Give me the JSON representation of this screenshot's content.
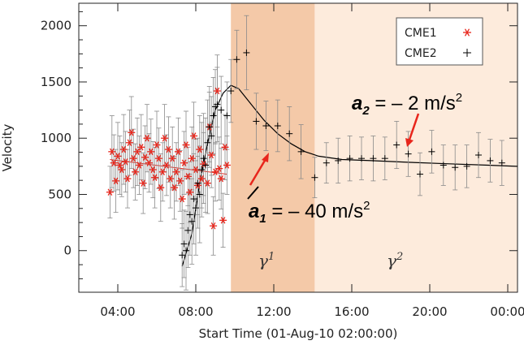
{
  "chart_data": {
    "type": "scatter",
    "title": "",
    "xlabel": "Start Time (01-Aug-10 02:00:00)",
    "ylabel": "Velocity",
    "xlim_hours": [
      2.0,
      24.5
    ],
    "ylim": [
      -370,
      2200
    ],
    "xticks": [
      {
        "hour": 4,
        "label": "04:00"
      },
      {
        "hour": 8,
        "label": "08:00"
      },
      {
        "hour": 12,
        "label": "12:00"
      },
      {
        "hour": 16,
        "label": "16:00"
      },
      {
        "hour": 20,
        "label": "20:00"
      },
      {
        "hour": 24,
        "label": "00:00"
      }
    ],
    "yticks": [
      0,
      500,
      1000,
      1500,
      2000
    ],
    "regions": [
      {
        "name": "γ1",
        "label": "γ",
        "label_index": "1",
        "start_hour": 9.8,
        "end_hour": 14.1,
        "color": "#f4c9a8"
      },
      {
        "name": "γ2",
        "label": "γ",
        "label_index": "2",
        "start_hour": 14.1,
        "end_hour": 24.5,
        "color": "#fdebdc"
      }
    ],
    "legend": {
      "position": "top-right",
      "entries": [
        {
          "label": "CME1",
          "marker": "asterisk",
          "color": "#e8261c"
        },
        {
          "label": "CME2",
          "marker": "plus",
          "color": "#000000"
        }
      ]
    },
    "annotations": [
      {
        "symbol": "a",
        "subscript": "1",
        "text": " = – 40 m/s",
        "superscript": "2"
      },
      {
        "symbol": "a",
        "subscript": "2",
        "text": " = – 2 m/s",
        "superscript": "2"
      }
    ],
    "series": [
      {
        "name": "CME1",
        "marker": "asterisk",
        "color": "#e8261c",
        "points": [
          [
            3.6,
            520,
            230
          ],
          [
            3.7,
            880,
            320
          ],
          [
            3.8,
            780,
            250
          ],
          [
            3.9,
            620,
            280
          ],
          [
            4.0,
            840,
            300
          ],
          [
            4.1,
            760,
            260
          ],
          [
            4.2,
            720,
            240
          ],
          [
            4.3,
            900,
            310
          ],
          [
            4.4,
            790,
            270
          ],
          [
            4.5,
            640,
            260
          ],
          [
            4.6,
            960,
            290
          ],
          [
            4.7,
            1050,
            320
          ],
          [
            4.8,
            820,
            260
          ],
          [
            4.9,
            700,
            250
          ],
          [
            5.0,
            880,
            300
          ],
          [
            5.1,
            760,
            260
          ],
          [
            5.2,
            920,
            290
          ],
          [
            5.3,
            600,
            270
          ],
          [
            5.4,
            830,
            280
          ],
          [
            5.5,
            1000,
            300
          ],
          [
            5.6,
            780,
            260
          ],
          [
            5.7,
            880,
            290
          ],
          [
            5.8,
            720,
            250
          ],
          [
            5.9,
            650,
            270
          ],
          [
            6.0,
            940,
            300
          ],
          [
            6.1,
            820,
            270
          ],
          [
            6.2,
            560,
            300
          ],
          [
            6.3,
            700,
            260
          ],
          [
            6.4,
            1000,
            300
          ],
          [
            6.5,
            760,
            270
          ],
          [
            6.6,
            900,
            290
          ],
          [
            6.7,
            640,
            260
          ],
          [
            6.8,
            820,
            280
          ],
          [
            6.9,
            560,
            280
          ],
          [
            7.0,
            700,
            260
          ],
          [
            7.1,
            880,
            300
          ],
          [
            7.2,
            620,
            270
          ],
          [
            7.3,
            460,
            260
          ],
          [
            7.4,
            780,
            280
          ],
          [
            7.5,
            940,
            300
          ],
          [
            7.6,
            660,
            260
          ],
          [
            7.7,
            520,
            270
          ],
          [
            7.8,
            820,
            280
          ],
          [
            7.9,
            1020,
            300
          ],
          [
            8.0,
            720,
            270
          ],
          [
            8.1,
            580,
            260
          ],
          [
            8.2,
            900,
            300
          ],
          [
            8.3,
            640,
            260
          ],
          [
            8.4,
            770,
            280
          ],
          [
            8.6,
            600,
            270
          ],
          [
            8.7,
            1100,
            310
          ],
          [
            8.8,
            850,
            290
          ],
          [
            8.9,
            220,
            260
          ],
          [
            9.0,
            700,
            260
          ],
          [
            9.1,
            1420,
            320
          ],
          [
            9.2,
            730,
            280
          ],
          [
            9.3,
            640,
            270
          ],
          [
            9.4,
            270,
            240
          ],
          [
            9.5,
            920,
            290
          ],
          [
            9.6,
            760,
            260
          ]
        ]
      },
      {
        "name": "CME2",
        "marker": "plus",
        "color": "#000000",
        "points": [
          [
            7.3,
            -40,
            280
          ],
          [
            7.4,
            60,
            300
          ],
          [
            7.5,
            0,
            350
          ],
          [
            7.6,
            180,
            330
          ],
          [
            7.7,
            320,
            360
          ],
          [
            7.8,
            260,
            380
          ],
          [
            7.9,
            460,
            400
          ],
          [
            8.0,
            380,
            420
          ],
          [
            8.1,
            600,
            400
          ],
          [
            8.2,
            500,
            430
          ],
          [
            8.3,
            720,
            420
          ],
          [
            8.4,
            820,
            400
          ],
          [
            8.5,
            760,
            420
          ],
          [
            8.6,
            960,
            380
          ],
          [
            8.7,
            1100,
            360
          ],
          [
            8.8,
            1020,
            350
          ],
          [
            8.9,
            1200,
            340
          ],
          [
            9.0,
            1280,
            330
          ],
          [
            9.1,
            1300,
            330
          ],
          [
            9.3,
            1250,
            300
          ],
          [
            9.6,
            1200,
            300
          ],
          [
            9.8,
            1420,
            280
          ],
          [
            10.1,
            1700,
            260
          ],
          [
            10.6,
            1760,
            330
          ],
          [
            11.1,
            1150,
            250
          ],
          [
            11.6,
            1110,
            220
          ],
          [
            12.2,
            1110,
            230
          ],
          [
            12.8,
            1040,
            240
          ],
          [
            13.4,
            880,
            240
          ],
          [
            14.1,
            650,
            180
          ],
          [
            14.7,
            780,
            180
          ],
          [
            15.3,
            800,
            200
          ],
          [
            15.9,
            820,
            200
          ],
          [
            16.5,
            820,
            190
          ],
          [
            17.1,
            820,
            200
          ],
          [
            17.7,
            820,
            190
          ],
          [
            18.3,
            940,
            210
          ],
          [
            18.9,
            860,
            200
          ],
          [
            19.5,
            680,
            190
          ],
          [
            20.1,
            880,
            190
          ],
          [
            20.7,
            760,
            180
          ],
          [
            21.3,
            740,
            200
          ],
          [
            21.9,
            750,
            190
          ],
          [
            22.5,
            850,
            200
          ],
          [
            23.1,
            800,
            190
          ],
          [
            23.7,
            780,
            200
          ]
        ]
      }
    ],
    "fit_lines": [
      {
        "name": "CME1 fit",
        "color": "#e8261c",
        "points": [
          [
            3.6,
            810
          ],
          [
            9.6,
            680
          ]
        ]
      },
      {
        "name": "CME2 fit",
        "color": "#000000",
        "points": [
          [
            7.3,
            -140
          ],
          [
            7.8,
            150
          ],
          [
            8.2,
            600
          ],
          [
            8.6,
            950
          ],
          [
            9.0,
            1250
          ],
          [
            9.4,
            1400
          ],
          [
            9.8,
            1470
          ],
          [
            10.2,
            1440
          ],
          [
            10.8,
            1310
          ],
          [
            11.5,
            1160
          ],
          [
            12.2,
            1040
          ],
          [
            12.9,
            950
          ],
          [
            13.6,
            880
          ],
          [
            14.3,
            840
          ],
          [
            15.5,
            810
          ],
          [
            17.0,
            800
          ],
          [
            19.0,
            785
          ],
          [
            21.0,
            772
          ],
          [
            23.0,
            760
          ],
          [
            24.5,
            750
          ]
        ]
      }
    ]
  }
}
